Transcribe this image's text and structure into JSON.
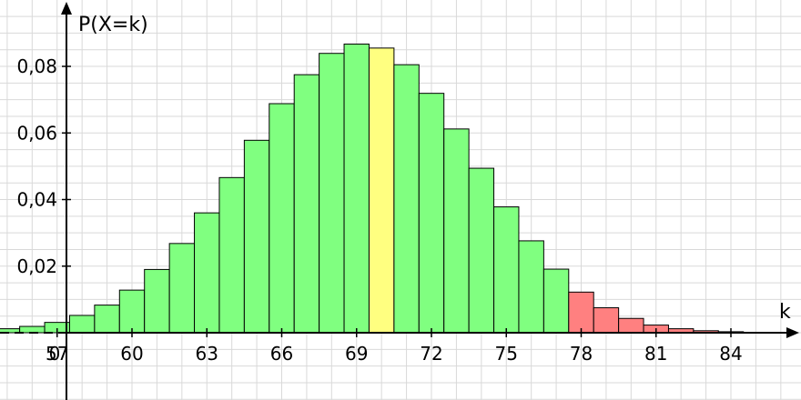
{
  "chart_data": {
    "type": "bar",
    "ylabel": "P(X=k)",
    "xlabel": "k",
    "origin_label": "0",
    "grid": true,
    "xlim": [
      52,
      86.5
    ],
    "ylim": [
      0,
      0.09
    ],
    "x_ticks": [
      57,
      60,
      63,
      66,
      69,
      72,
      75,
      78,
      81,
      84
    ],
    "y_ticks": [
      {
        "value": 0.02,
        "label": "0,02"
      },
      {
        "value": 0.04,
        "label": "0,04"
      },
      {
        "value": 0.06,
        "label": "0,06"
      },
      {
        "value": 0.08,
        "label": "0,08"
      }
    ],
    "x": [
      53,
      54,
      55,
      56,
      57,
      58,
      59,
      60,
      61,
      62,
      63,
      64,
      65,
      66,
      67,
      68,
      69,
      70,
      71,
      72,
      73,
      74,
      75,
      76,
      77,
      78,
      79,
      80,
      81,
      82,
      83,
      84,
      85
    ],
    "values": [
      0.0004,
      0.0007,
      0.0012,
      0.0019,
      0.0031,
      0.0052,
      0.0083,
      0.0128,
      0.019,
      0.0268,
      0.036,
      0.0466,
      0.0578,
      0.0688,
      0.0775,
      0.0839,
      0.0867,
      0.0855,
      0.0805,
      0.0719,
      0.0612,
      0.0494,
      0.0378,
      0.0276,
      0.0191,
      0.0122,
      0.0075,
      0.0043,
      0.0023,
      0.0012,
      0.0006,
      0.0003,
      0.0001
    ],
    "highlight": [
      {
        "from": 53,
        "to": 69,
        "color": "#80ff80",
        "label": "green"
      },
      {
        "from": 70,
        "to": 70,
        "color": "#ffff80",
        "label": "yellow"
      },
      {
        "from": 71,
        "to": 77,
        "color": "#80ff80",
        "label": "green"
      },
      {
        "from": 78,
        "to": 85,
        "color": "#ff8080",
        "label": "red"
      }
    ]
  }
}
